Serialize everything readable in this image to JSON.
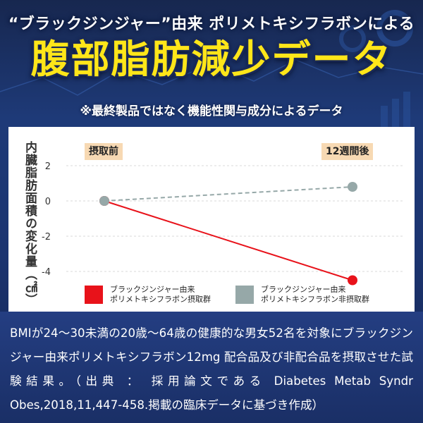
{
  "header": {
    "subtitle": "“ブラックジンジャー”由来 ポリメトキシフラボンによる",
    "headline": "腹部脂肪減少データ",
    "note": "※最終製品ではなく機能性関与成分によるデータ"
  },
  "colors": {
    "headline": "#ffe619",
    "intake_series": "#e8121a",
    "non_intake_series": "#96a8a8",
    "phase_tag_bg": "#f7d9b3"
  },
  "chart_data": {
    "type": "line",
    "ylabel": "内臓脂肪面積の変化量（㎠）",
    "x": [
      "摂取前",
      "12週間後"
    ],
    "ylim": [
      -5,
      2.6
    ],
    "yticks": [
      2,
      0,
      -2,
      -4
    ],
    "ytick_labels": [
      "2",
      "0",
      "-2",
      "-4"
    ],
    "series": [
      {
        "name": "ブラックジンジャー由来\nポリメトキシフラボン摂取群",
        "values": [
          0,
          -4.5
        ],
        "color": "#e8121a",
        "style": "solid"
      },
      {
        "name": "ブラックジンジャー由来\nポリメトキシフラボン非摂取群",
        "values": [
          0,
          0.8
        ],
        "color": "#96a8a8",
        "style": "dashed"
      }
    ],
    "grid": "horizontal",
    "legend_position": "bottom"
  },
  "footer": {
    "text": "BMIが24〜30未満の20歳〜64歳の健康的な男女52名を対象にブラックジンジャー由来ポリメトキシフラボン12mg 配合品及び非配合品を摂取させた試験結果。（出典 ： 採用論文である Diabetes Metab Syndr Obes,2018,11,447-458.掲載の臨床データに基づき作成）"
  }
}
